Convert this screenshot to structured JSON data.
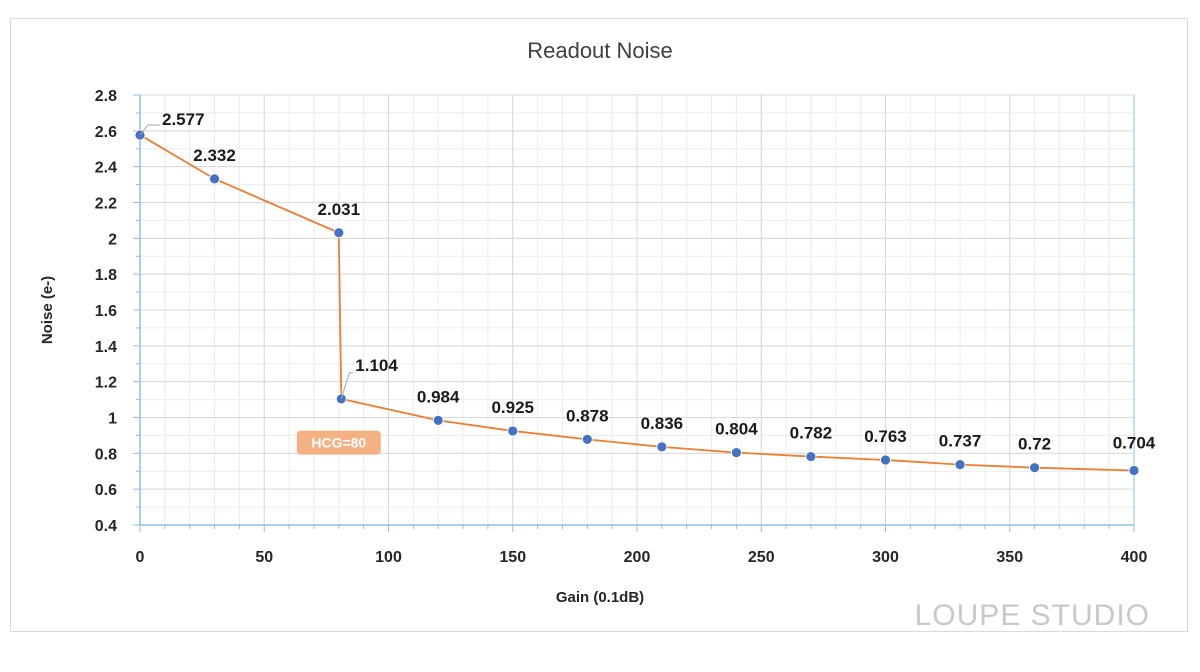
{
  "chart_data": {
    "type": "line",
    "title": "Readout Noise",
    "xlabel": "Gain (0.1dB)",
    "ylabel": "Noise (e-)",
    "xlim": [
      0,
      400
    ],
    "ylim": [
      0.4,
      2.8
    ],
    "x_ticks": [
      0,
      50,
      100,
      150,
      200,
      250,
      300,
      350,
      400
    ],
    "y_ticks": [
      0.4,
      0.6,
      0.8,
      1,
      1.2,
      1.4,
      1.6,
      1.8,
      2,
      2.2,
      2.4,
      2.6,
      2.8
    ],
    "grid": true,
    "series": [
      {
        "x": [
          0,
          30,
          80,
          81,
          120,
          150,
          180,
          210,
          240,
          270,
          300,
          330,
          360,
          400
        ],
        "y": [
          2.577,
          2.332,
          2.031,
          1.104,
          0.984,
          0.925,
          0.878,
          0.836,
          0.804,
          0.782,
          0.763,
          0.737,
          0.72,
          0.704
        ],
        "labels": [
          "2.577",
          "2.332",
          "2.031",
          "1.104",
          "0.984",
          "0.925",
          "0.878",
          "0.836",
          "0.804",
          "0.782",
          "0.763",
          "0.737",
          "0.72",
          "0.704"
        ]
      }
    ],
    "annotations": [
      {
        "text": "HCG=80",
        "x": 80,
        "y": 0.86
      }
    ],
    "colors": {
      "line": "#ed7d31",
      "marker": "#4472c4",
      "annotation_bg": "#f4b183",
      "grid": "#d9d9d9",
      "axis": "#8fbfe0"
    }
  },
  "watermark": "LOUPE STUDIO"
}
